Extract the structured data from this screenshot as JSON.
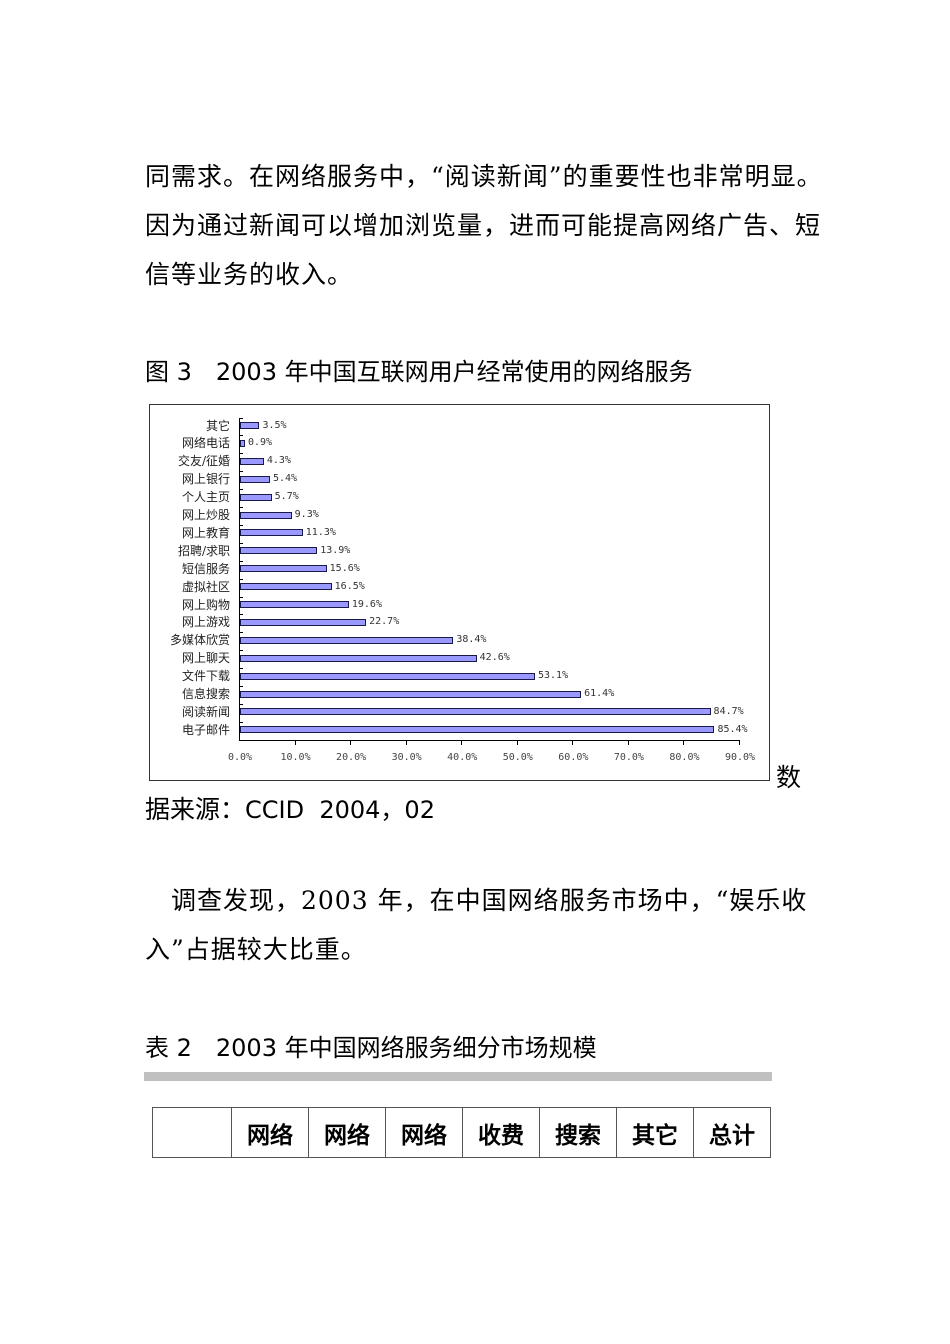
{
  "paragraph_1": {
    "lines": [
      "同需求。在网络服务中，“阅读新闻”的重要性也非常明显。",
      "因为通过新闻可以增加浏览量，进而可能提高网络广告、短",
      "信等业务的收入。"
    ]
  },
  "figure_3": {
    "caption": "图 3　2003 年中国互联网用户经常使用的网络服务"
  },
  "chart_data": {
    "type": "bar",
    "orientation": "horizontal",
    "title": "2003年中国互联网用户经常使用的网络服务",
    "categories": [
      "其它",
      "网络电话",
      "交友/征婚",
      "网上银行",
      "个人主页",
      "网上炒股",
      "网上教育",
      "招聘/求职",
      "短信服务",
      "虚拟社区",
      "网上购物",
      "网上游戏",
      "多媒体欣赏",
      "网上聊天",
      "文件下载",
      "信息搜索",
      "阅读新闻",
      "电子邮件"
    ],
    "values": [
      3.5,
      0.9,
      4.3,
      5.4,
      5.7,
      9.3,
      11.3,
      13.9,
      15.6,
      16.5,
      19.6,
      22.7,
      38.4,
      42.6,
      53.1,
      61.4,
      84.7,
      85.4
    ],
    "value_labels": [
      "3.5%",
      "0.9%",
      "4.3%",
      "5.4%",
      "5.7%",
      "9.3%",
      "11.3%",
      "13.9%",
      "15.6%",
      "16.5%",
      "19.6%",
      "22.7%",
      "38.4%",
      "42.6%",
      "53.1%",
      "61.4%",
      "84.7%",
      "85.4%"
    ],
    "x_ticks": [
      "0.0%",
      "10.0%",
      "20.0%",
      "30.0%",
      "40.0%",
      "50.0%",
      "60.0%",
      "70.0%",
      "80.0%",
      "90.0%"
    ],
    "xlim": [
      0,
      90
    ],
    "xlabel": "",
    "ylabel": "",
    "grid": false,
    "legend": null,
    "bar_color": "#9999ff",
    "bar_edge_color": "#1a1a4a"
  },
  "source": {
    "trailing_char": "数",
    "prefix": "据来源：",
    "text": "CCID  2004，02"
  },
  "paragraph_2": {
    "lines": [
      "　调查发现，2003 年，在中国网络服务市场中，“娱乐收",
      "入”占据较大比重。"
    ]
  },
  "table_2": {
    "caption": "表 2　2003 年中国网络服务细分市场规模",
    "header": [
      "",
      "网络",
      "网络",
      "网络",
      "收费",
      "搜索",
      "其它",
      "总计"
    ]
  }
}
